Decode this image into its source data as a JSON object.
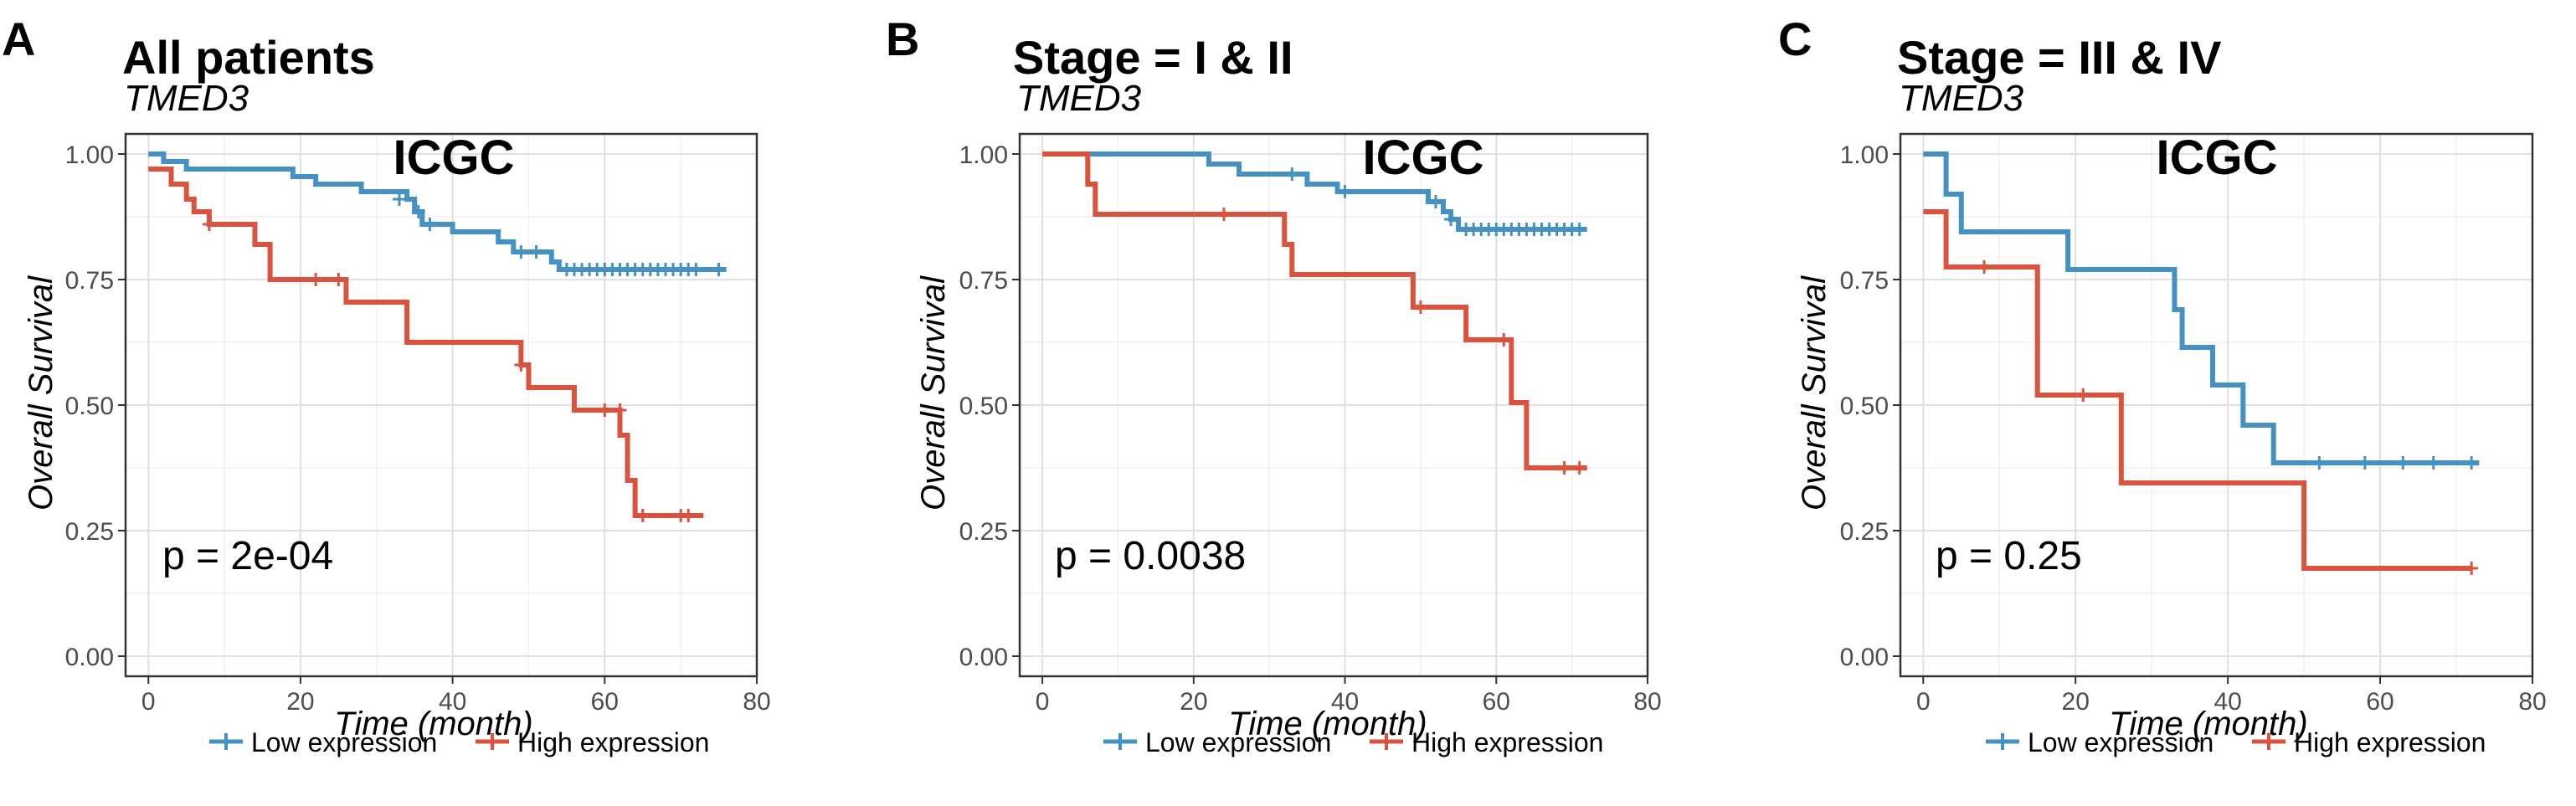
{
  "colors": {
    "low": "#4592c2",
    "high": "#d9533f"
  },
  "chart_data": [
    {
      "type": "line",
      "panel_letter": "A",
      "title": "All patients",
      "subtitle": "TMED3",
      "cohort": "ICGC",
      "p_value": "p = 2e-04",
      "xlabel": "Time (month)",
      "ylabel": "Overall Survival",
      "xlim": [
        -3,
        80
      ],
      "ylim": [
        -0.04,
        1.04
      ],
      "xticks": [
        0,
        20,
        40,
        60,
        80
      ],
      "yticks": [
        0,
        0.25,
        0.5,
        0.75,
        1
      ],
      "ytick_labels": [
        "0.00",
        "0.25",
        "0.50",
        "0.75",
        "1.00"
      ],
      "legend": [
        "Low expression",
        "High expression"
      ],
      "series": [
        {
          "name": "Low expression",
          "steps": [
            [
              0,
              1
            ],
            [
              2,
              0.985
            ],
            [
              5,
              0.97
            ],
            [
              19,
              0.955
            ],
            [
              22,
              0.94
            ],
            [
              28,
              0.925
            ],
            [
              34,
              0.91
            ],
            [
              35,
              0.885
            ],
            [
              36,
              0.86
            ],
            [
              40,
              0.845
            ],
            [
              46,
              0.825
            ],
            [
              48,
              0.805
            ],
            [
              53,
              0.785
            ],
            [
              54,
              0.77
            ],
            [
              76,
              0.77
            ]
          ],
          "censors": [
            [
              33,
              0.91
            ],
            [
              35.5,
              0.885
            ],
            [
              37,
              0.86
            ],
            [
              49,
              0.805
            ],
            [
              51,
              0.805
            ],
            [
              55,
              0.77
            ],
            [
              56,
              0.77
            ],
            [
              57,
              0.77
            ],
            [
              58,
              0.77
            ],
            [
              59,
              0.77
            ],
            [
              60,
              0.77
            ],
            [
              61,
              0.77
            ],
            [
              62,
              0.77
            ],
            [
              63,
              0.77
            ],
            [
              64,
              0.77
            ],
            [
              65,
              0.77
            ],
            [
              66,
              0.77
            ],
            [
              67,
              0.77
            ],
            [
              68,
              0.77
            ],
            [
              69,
              0.77
            ],
            [
              70,
              0.77
            ],
            [
              71,
              0.77
            ],
            [
              72,
              0.77
            ],
            [
              75,
              0.77
            ]
          ]
        },
        {
          "name": "High expression",
          "steps": [
            [
              0,
              0.97
            ],
            [
              3,
              0.94
            ],
            [
              5,
              0.91
            ],
            [
              6,
              0.885
            ],
            [
              8,
              0.86
            ],
            [
              14,
              0.82
            ],
            [
              16,
              0.75
            ],
            [
              26,
              0.705
            ],
            [
              34,
              0.625
            ],
            [
              49,
              0.58
            ],
            [
              50,
              0.535
            ],
            [
              56,
              0.49
            ],
            [
              62,
              0.44
            ],
            [
              63,
              0.35
            ],
            [
              64,
              0.28
            ],
            [
              73,
              0.28
            ]
          ],
          "censors": [
            [
              8,
              0.86
            ],
            [
              22,
              0.75
            ],
            [
              25,
              0.75
            ],
            [
              49,
              0.58
            ],
            [
              60,
              0.49
            ],
            [
              62,
              0.49
            ],
            [
              65,
              0.28
            ],
            [
              70,
              0.28
            ],
            [
              71,
              0.28
            ]
          ]
        }
      ]
    },
    {
      "type": "line",
      "panel_letter": "B",
      "title": "Stage = I & II",
      "subtitle": "TMED3",
      "cohort": "ICGC",
      "p_value": "p = 0.0038",
      "xlabel": "Time (month)",
      "ylabel": "Overall Survival",
      "xlim": [
        -3,
        80
      ],
      "ylim": [
        -0.04,
        1.04
      ],
      "xticks": [
        0,
        20,
        40,
        60,
        80
      ],
      "yticks": [
        0,
        0.25,
        0.5,
        0.75,
        1
      ],
      "ytick_labels": [
        "0.00",
        "0.25",
        "0.50",
        "0.75",
        "1.00"
      ],
      "legend": [
        "Low expression",
        "High expression"
      ],
      "series": [
        {
          "name": "Low expression",
          "steps": [
            [
              0,
              1
            ],
            [
              22,
              0.98
            ],
            [
              26,
              0.96
            ],
            [
              35,
              0.94
            ],
            [
              39,
              0.925
            ],
            [
              51,
              0.905
            ],
            [
              53,
              0.885
            ],
            [
              54,
              0.87
            ],
            [
              55,
              0.85
            ],
            [
              72,
              0.85
            ]
          ],
          "censors": [
            [
              33,
              0.96
            ],
            [
              40,
              0.925
            ],
            [
              52,
              0.905
            ],
            [
              54,
              0.87
            ],
            [
              56,
              0.85
            ],
            [
              57,
              0.85
            ],
            [
              58,
              0.85
            ],
            [
              59,
              0.85
            ],
            [
              60,
              0.85
            ],
            [
              61,
              0.85
            ],
            [
              62,
              0.85
            ],
            [
              63,
              0.85
            ],
            [
              64,
              0.85
            ],
            [
              65,
              0.85
            ],
            [
              66,
              0.85
            ],
            [
              67,
              0.85
            ],
            [
              68,
              0.85
            ],
            [
              69,
              0.85
            ],
            [
              70,
              0.85
            ],
            [
              71,
              0.85
            ]
          ]
        },
        {
          "name": "High expression",
          "steps": [
            [
              0,
              1
            ],
            [
              6,
              0.94
            ],
            [
              7,
              0.88
            ],
            [
              32,
              0.82
            ],
            [
              33,
              0.76
            ],
            [
              49,
              0.695
            ],
            [
              56,
              0.63
            ],
            [
              62,
              0.505
            ],
            [
              64,
              0.375
            ],
            [
              72,
              0.375
            ]
          ],
          "censors": [
            [
              24,
              0.88
            ],
            [
              50,
              0.695
            ],
            [
              61,
              0.63
            ],
            [
              69,
              0.375
            ],
            [
              71,
              0.375
            ]
          ]
        }
      ]
    },
    {
      "type": "line",
      "panel_letter": "C",
      "title": "Stage = III & IV",
      "subtitle": "TMED3",
      "cohort": "ICGC",
      "p_value": "p = 0.25",
      "xlabel": "Time (month)",
      "ylabel": "Overall Survival",
      "xlim": [
        -3,
        80
      ],
      "ylim": [
        -0.04,
        1.04
      ],
      "xticks": [
        0,
        20,
        40,
        60,
        80
      ],
      "yticks": [
        0,
        0.25,
        0.5,
        0.75,
        1
      ],
      "ytick_labels": [
        "0.00",
        "0.25",
        "0.50",
        "0.75",
        "1.00"
      ],
      "legend": [
        "Low expression",
        "High expression"
      ],
      "series": [
        {
          "name": "Low expression",
          "steps": [
            [
              0,
              1
            ],
            [
              3,
              0.92
            ],
            [
              5,
              0.845
            ],
            [
              19,
              0.77
            ],
            [
              33,
              0.69
            ],
            [
              34,
              0.615
            ],
            [
              38,
              0.54
            ],
            [
              42,
              0.46
            ],
            [
              46,
              0.385
            ],
            [
              73,
              0.385
            ]
          ],
          "censors": [
            [
              52,
              0.385
            ],
            [
              58,
              0.385
            ],
            [
              63,
              0.385
            ],
            [
              67,
              0.385
            ],
            [
              72,
              0.385
            ]
          ]
        },
        {
          "name": "High expression",
          "steps": [
            [
              0,
              0.885
            ],
            [
              3,
              0.775
            ],
            [
              15,
              0.52
            ],
            [
              26,
              0.345
            ],
            [
              50,
              0.175
            ],
            [
              72,
              0.175
            ]
          ],
          "censors": [
            [
              8,
              0.775
            ],
            [
              21,
              0.52
            ],
            [
              72,
              0.175
            ]
          ]
        }
      ]
    }
  ]
}
